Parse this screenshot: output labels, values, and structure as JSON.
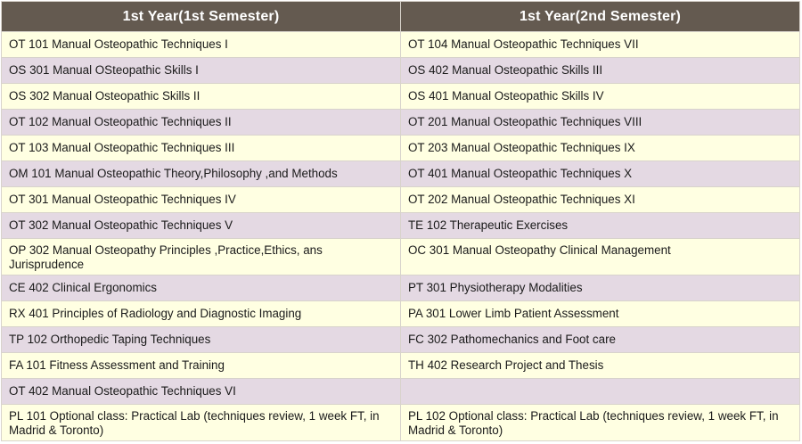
{
  "header": {
    "col1": "1st Year(1st Semester)",
    "col2": "1st Year(2nd Semester)"
  },
  "rows": [
    [
      "OT 101 Manual Osteopathic Techniques I",
      "OT 104 Manual Osteopathic Techniques VII"
    ],
    [
      "OS 301 Manual OSteopathic Skills I",
      "OS 402 Manual Osteopathic Skills III"
    ],
    [
      "OS 302 Manual Osteopathic Skills II",
      "OS 401 Manual Osteopathic Skills IV"
    ],
    [
      "OT 102 Manual Osteopathic Techniques II",
      "OT 201 Manual Osteopathic Techniques VIII"
    ],
    [
      "OT 103 Manual Osteopathic Techniques III",
      "OT 203 Manual Osteopathic Techniques IX"
    ],
    [
      "OM 101 Manual Osteopathic Theory,Philosophy ,and Methods",
      "OT 401 Manual Osteopathic Techniques X"
    ],
    [
      "OT 301 Manual Osteopathic Techniques IV",
      "OT 202 Manual Osteopathic Techniques XI"
    ],
    [
      "OT 302 Manual Osteopathic Techniques V",
      "TE 102 Therapeutic Exercises"
    ],
    [
      "OP 302 Manual Osteopathy Principles ,Practice,Ethics, ans Jurisprudence",
      "OC 301 Manual Osteopathy Clinical Management"
    ],
    [
      "CE 402 Clinical Ergonomics",
      "PT 301 Physiotherapy Modalities"
    ],
    [
      "RX 401 Principles of Radiology and Diagnostic Imaging",
      "PA 301 Lower Limb Patient Assessment"
    ],
    [
      "TP 102 Orthopedic Taping Techniques",
      "FC 302 Pathomechanics and Foot care"
    ],
    [
      "FA 101 Fitness Assessment and Training",
      "TH 402 Research Project and Thesis"
    ],
    [
      "OT 402 Manual Osteopathic Techniques VI",
      ""
    ],
    [
      "PL 101 Optional class: Practical Lab (techniques review, 1 week FT, in Madrid & Toronto)",
      "PL 102 Optional class: Practical Lab (techniques review, 1 week FT, in Madrid & Toronto)"
    ]
  ]
}
